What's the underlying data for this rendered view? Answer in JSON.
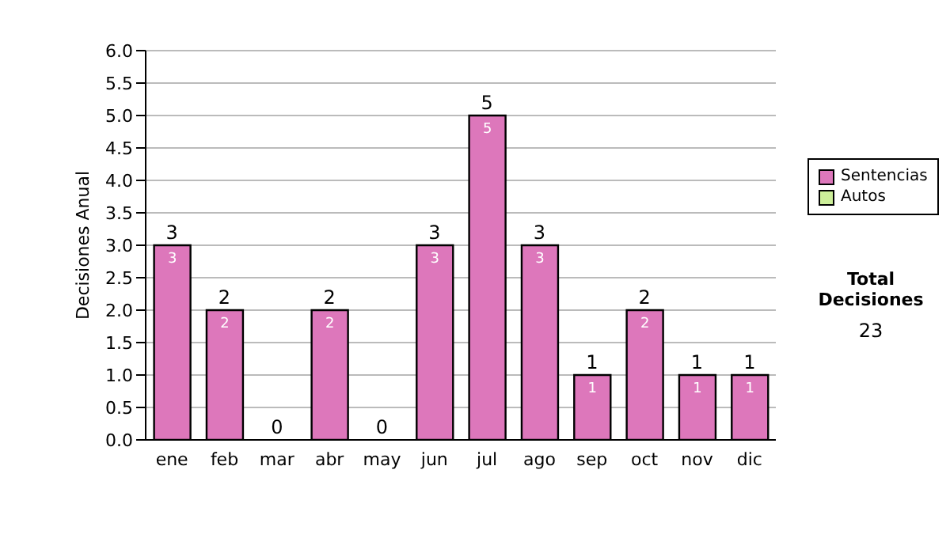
{
  "chart_data": {
    "type": "bar",
    "stacked": true,
    "ylabel": "Decisiones Anual",
    "categories": [
      "ene",
      "feb",
      "mar",
      "abr",
      "may",
      "jun",
      "jul",
      "ago",
      "sep",
      "oct",
      "nov",
      "dic"
    ],
    "series": [
      {
        "name": "Sentencias",
        "color": "#dd77bb",
        "values": [
          3,
          2,
          0,
          2,
          0,
          3,
          5,
          3,
          1,
          2,
          1,
          1
        ],
        "value_labels": [
          "3",
          "2",
          null,
          "2",
          null,
          "3",
          "5",
          "3",
          "1",
          "2",
          "1",
          "1"
        ]
      },
      {
        "name": "Autos",
        "color": "#ccee99",
        "values": [
          0,
          0,
          0,
          0,
          0,
          0,
          0,
          0,
          0,
          0,
          0,
          0
        ]
      }
    ],
    "totals": [
      "3",
      "2",
      "0",
      "2",
      "0",
      "3",
      "5",
      "3",
      "1",
      "2",
      "1",
      "1"
    ],
    "ylim": [
      0,
      6
    ],
    "yticks": [
      {
        "value": 0,
        "label": "0.0"
      },
      {
        "value": 0.5,
        "label": "0.5"
      },
      {
        "value": 1,
        "label": "1.0"
      },
      {
        "value": 1.5,
        "label": "1.5"
      },
      {
        "value": 2,
        "label": "2.0"
      },
      {
        "value": 2.5,
        "label": "2.5"
      },
      {
        "value": 3,
        "label": "3.0"
      },
      {
        "value": 3.5,
        "label": "3.5"
      },
      {
        "value": 4,
        "label": "4.0"
      },
      {
        "value": 4.5,
        "label": "4.5"
      },
      {
        "value": 5,
        "label": "5.0"
      },
      {
        "value": 5.5,
        "label": "5.5"
      },
      {
        "value": 6,
        "label": "6.0"
      }
    ],
    "grid": "y",
    "legend": "right",
    "annotations": [
      "Total Decisiones",
      "23"
    ]
  }
}
